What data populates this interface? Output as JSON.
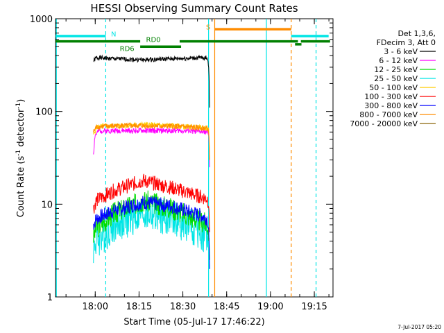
{
  "chart_data": {
    "type": "line",
    "title": "HESSI Observing Summary Count Rates",
    "xlabel": "Start Time (05-Jul-17 17:46:22)",
    "ylabel_main": "Count Rate (s",
    "ylabel_sup1": "-1",
    "ylabel_mid": " detector",
    "ylabel_sup2": "-1",
    "ylabel_end": ")",
    "y_scale": "log",
    "xlim_minutes_after_start": [
      0,
      95
    ],
    "ylim": [
      1,
      1000
    ],
    "x_ticks": [
      {
        "label": "18:00",
        "minutes_after_start": 13.6
      },
      {
        "label": "18:15",
        "minutes_after_start": 28.6
      },
      {
        "label": "18:30",
        "minutes_after_start": 43.6
      },
      {
        "label": "18:45",
        "minutes_after_start": 58.6
      },
      {
        "label": "19:00",
        "minutes_after_start": 73.6
      },
      {
        "label": "19:15",
        "minutes_after_start": 88.6
      }
    ],
    "y_ticks": [
      {
        "label": "1",
        "value": 1
      },
      {
        "label": "10",
        "value": 10
      },
      {
        "label": "100",
        "value": 100
      },
      {
        "label": "1000",
        "value": 1000
      }
    ],
    "legend_header": [
      "Det 1,3,6,",
      "FDecim 3, Att 0"
    ],
    "legend_placement": "right",
    "series": [
      {
        "name": "3 - 6 keV",
        "color": "#000000",
        "seed": 1,
        "noise": 0.025,
        "points": [
          [
            13,
            350
          ],
          [
            14,
            380
          ],
          [
            20,
            370
          ],
          [
            30,
            360
          ],
          [
            40,
            370
          ],
          [
            52,
            380
          ],
          [
            52.5,
            300
          ],
          [
            52.8,
            110
          ]
        ]
      },
      {
        "name": "6 - 12 keV",
        "color": "#ff00ff",
        "seed": 2,
        "noise": 0.03,
        "points": [
          [
            13,
            35
          ],
          [
            13.5,
            55
          ],
          [
            15,
            62
          ],
          [
            30,
            62
          ],
          [
            45,
            62
          ],
          [
            52,
            60
          ],
          [
            52.5,
            55
          ],
          [
            52.8,
            25
          ]
        ]
      },
      {
        "name": "12 - 25 keV",
        "color": "#00dd00",
        "seed": 3,
        "noise": 0.12,
        "points": [
          [
            13,
            4.5
          ],
          [
            14,
            5.5
          ],
          [
            20,
            8
          ],
          [
            30,
            11
          ],
          [
            40,
            9
          ],
          [
            50,
            6.5
          ],
          [
            52,
            6
          ],
          [
            52.5,
            5
          ],
          [
            52.8,
            2.5
          ]
        ]
      },
      {
        "name": "25 - 50 keV",
        "color": "#00e5e5",
        "seed": 4,
        "noise": 0.2,
        "points": [
          [
            13,
            3.5
          ],
          [
            14,
            4
          ],
          [
            20,
            6
          ],
          [
            30,
            8
          ],
          [
            40,
            7
          ],
          [
            50,
            5
          ],
          [
            52,
            4.5
          ],
          [
            52.5,
            3.5
          ],
          [
            52.8,
            2.0
          ]
        ]
      },
      {
        "name": "50 - 100 keV",
        "color": "#ffcc00",
        "seed": 5,
        "noise": 0.03,
        "points": [
          [
            13,
            55
          ],
          [
            14,
            68
          ],
          [
            20,
            70
          ],
          [
            30,
            72
          ],
          [
            40,
            70
          ],
          [
            52,
            66
          ],
          [
            52.5,
            60
          ],
          [
            52.8,
            30
          ]
        ]
      },
      {
        "name": "100 - 300 keV",
        "color": "#ff0000",
        "seed": 6,
        "noise": 0.08,
        "points": [
          [
            13,
            9
          ],
          [
            14,
            11
          ],
          [
            20,
            14
          ],
          [
            30,
            18
          ],
          [
            40,
            15
          ],
          [
            50,
            12
          ],
          [
            52,
            11.5
          ],
          [
            52.5,
            10
          ],
          [
            52.8,
            5
          ]
        ]
      },
      {
        "name": "300 - 800 keV",
        "color": "#0000ff",
        "seed": 7,
        "noise": 0.08,
        "points": [
          [
            13,
            6
          ],
          [
            14,
            7
          ],
          [
            20,
            8.5
          ],
          [
            30,
            10.5
          ],
          [
            40,
            9.5
          ],
          [
            50,
            7.5
          ],
          [
            52,
            7
          ],
          [
            52.5,
            5
          ],
          [
            52.8,
            2
          ]
        ]
      },
      {
        "name": "800 - 7000 keV",
        "color": "#ff8c00",
        "seed": 8,
        "noise": 0.03,
        "points": [
          [
            13,
            60
          ],
          [
            14,
            68
          ],
          [
            20,
            70
          ],
          [
            30,
            70
          ],
          [
            40,
            69
          ],
          [
            52,
            66
          ],
          [
            52.5,
            60
          ],
          [
            52.8,
            30
          ]
        ]
      },
      {
        "name": "7000 - 20000 keV",
        "color": "#8b6508",
        "seed": 9,
        "noise": 0.0,
        "points": []
      }
    ],
    "vertical_lines": [
      {
        "minutes_after_start": 0.3,
        "color": "#00e5e5",
        "style": "solid"
      },
      {
        "minutes_after_start": 17.2,
        "color": "#00e5e5",
        "style": "dashed"
      },
      {
        "minutes_after_start": 52.4,
        "color": "#00e5e5",
        "style": "solid"
      },
      {
        "minutes_after_start": 54.5,
        "color": "#ff8c00",
        "style": "solid"
      },
      {
        "minutes_after_start": 72.2,
        "color": "#00e5e5",
        "style": "solid"
      },
      {
        "minutes_after_start": 80.7,
        "color": "#ff8c00",
        "style": "dashed"
      },
      {
        "minutes_after_start": 89.2,
        "color": "#00e5e5",
        "style": "dashed"
      }
    ],
    "flag_bars": [
      {
        "label": "N",
        "color": "#00e5e5",
        "y": 650,
        "segments": [
          [
            0,
            17.2
          ],
          [
            80.7,
            93.5
          ]
        ]
      },
      {
        "label": "S",
        "color": "#ff8c00",
        "y": 770,
        "segments": [
          [
            54.5,
            80.7
          ]
        ]
      },
      {
        "label": "RD0",
        "color": "#008000",
        "y": 570,
        "segments": [
          [
            0,
            29
          ],
          [
            42.5,
            83
          ],
          [
            84,
            94
          ]
        ]
      },
      {
        "label": "RD6",
        "color": "#008000",
        "y": 500,
        "segments": [
          [
            29,
            43
          ]
        ]
      },
      {
        "label": "",
        "color": "#008000",
        "y": 530,
        "segments": [
          [
            82,
            84.2
          ]
        ]
      }
    ],
    "flag_labels": [
      {
        "text": "N",
        "color": "#00e5e5",
        "x": 19,
        "y": 690
      },
      {
        "text": "S",
        "color": "#ff8c00",
        "x": 51.5,
        "y": 820
      },
      {
        "text": "RD0",
        "color": "#008000",
        "x": 31,
        "y": 600
      },
      {
        "text": "RD6",
        "color": "#008000",
        "x": 22,
        "y": 480
      }
    ],
    "footer_date": "7-Jul-2017 05:20"
  }
}
